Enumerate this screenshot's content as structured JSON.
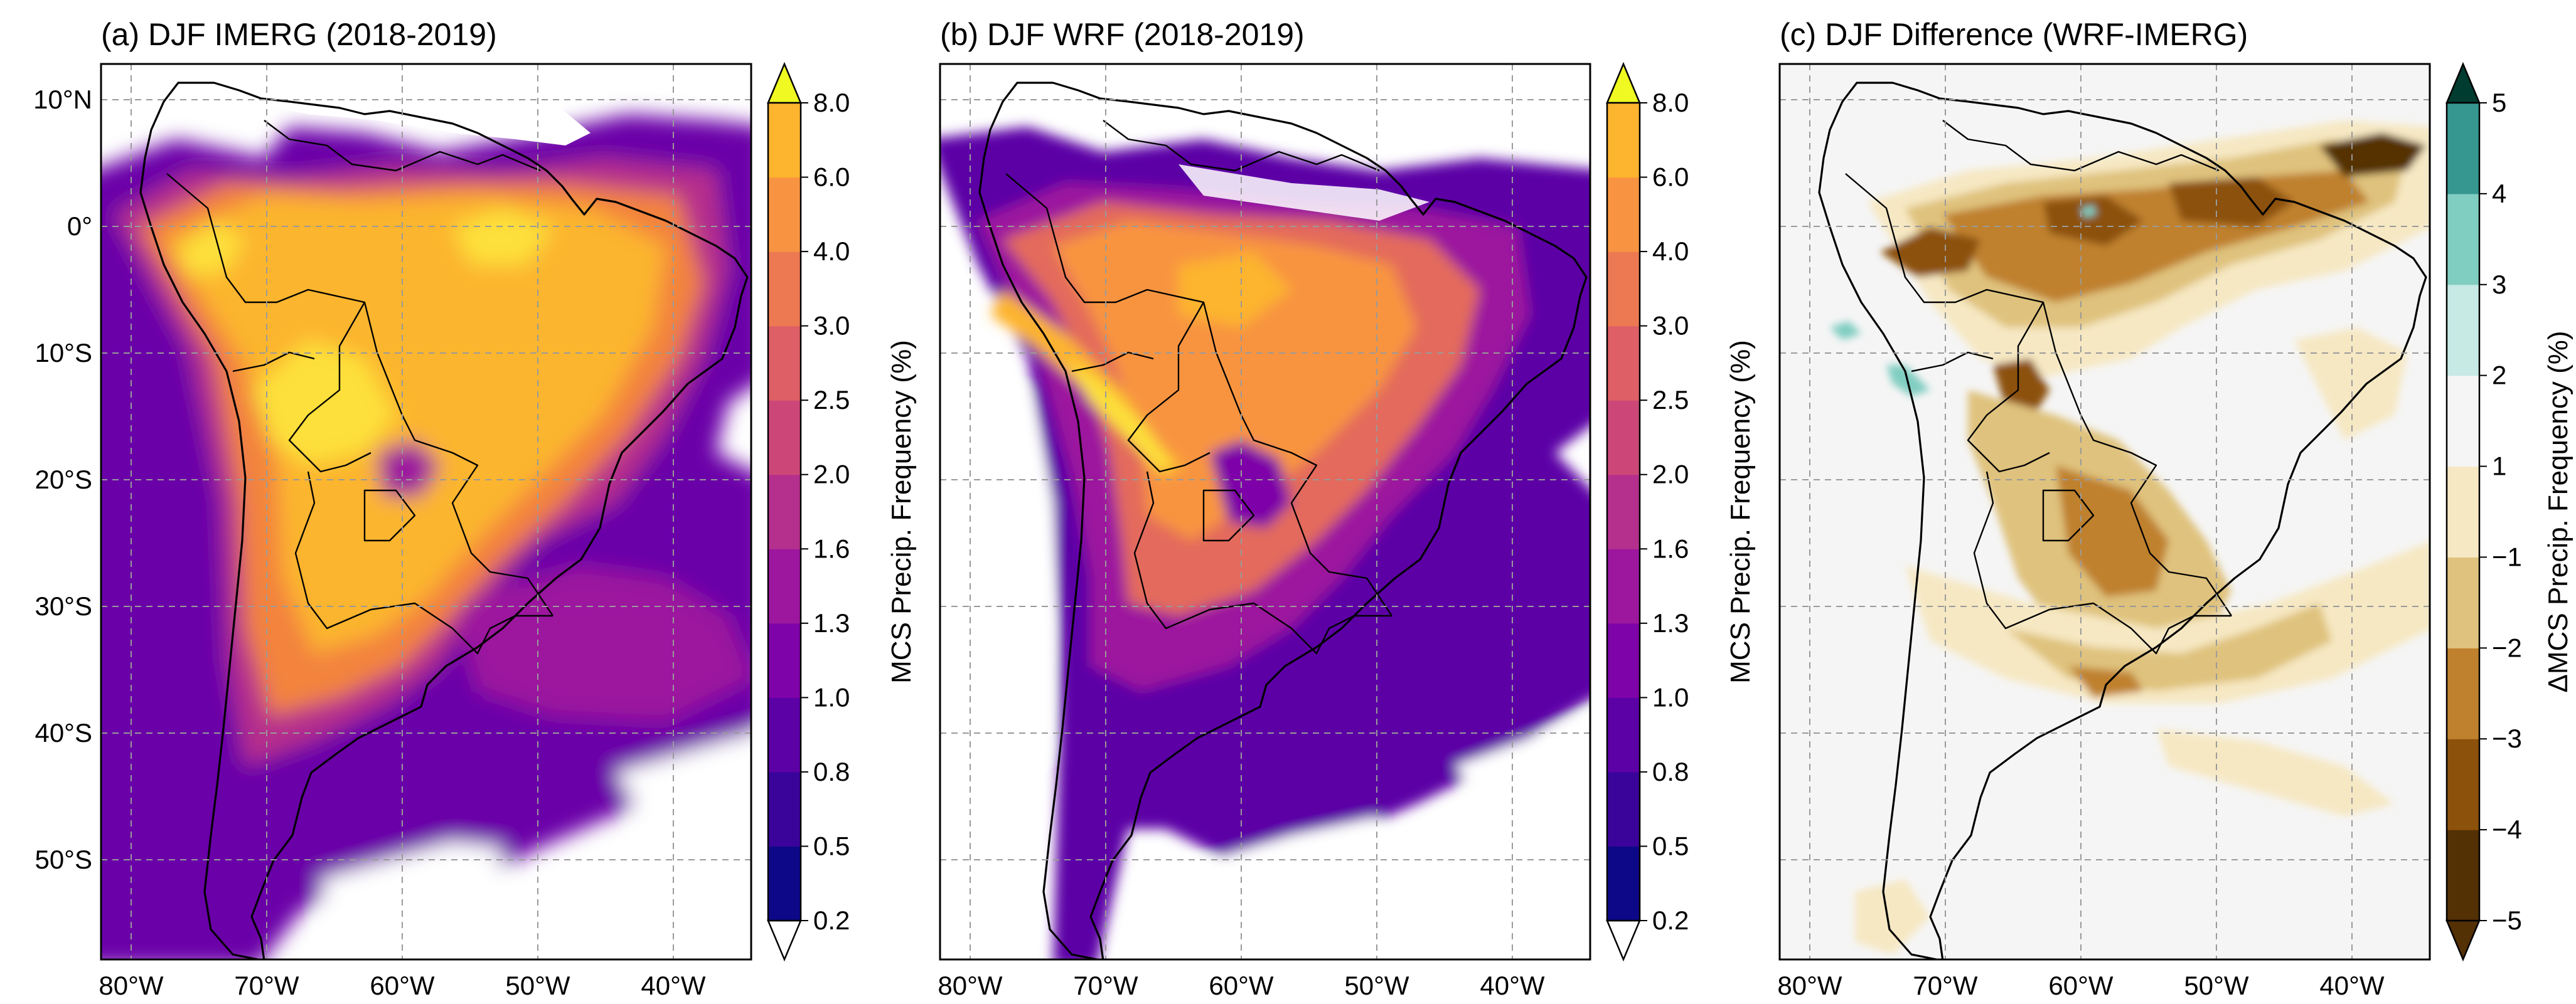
{
  "figure": {
    "panels": [
      {
        "id": "a",
        "title": "(a) DJF IMERG (2018-2019)",
        "colorbar_label": "MCS Precip. Frequency (%)",
        "colorbar_ticks": [
          "0.2",
          "0.5",
          "0.8",
          "1.0",
          "1.3",
          "1.6",
          "2.0",
          "2.5",
          "3.0",
          "4.0",
          "6.0",
          "8.0"
        ],
        "colorbar_colors": [
          "#0d0887",
          "#3a049a",
          "#5c01a6",
          "#7e03a8",
          "#9c179e",
          "#b52f8c",
          "#cc4778",
          "#de5f65",
          "#ed7953",
          "#f89441",
          "#fdb42f",
          "#fbd524",
          "#f0f921"
        ],
        "colorbar_extend": "both"
      },
      {
        "id": "b",
        "title": "(b) DJF WRF (2018-2019)",
        "colorbar_label": "MCS Precip. Frequency (%)",
        "colorbar_ticks": [
          "0.2",
          "0.5",
          "0.8",
          "1.0",
          "1.3",
          "1.6",
          "2.0",
          "2.5",
          "3.0",
          "4.0",
          "6.0",
          "8.0"
        ],
        "colorbar_colors": [
          "#0d0887",
          "#3a049a",
          "#5c01a6",
          "#7e03a8",
          "#9c179e",
          "#b52f8c",
          "#cc4778",
          "#de5f65",
          "#ed7953",
          "#f89441",
          "#fdb42f",
          "#fbd524",
          "#f0f921"
        ],
        "colorbar_extend": "both"
      },
      {
        "id": "c",
        "title": "(c) DJF Difference (WRF-IMERG)",
        "colorbar_label": "ΔMCS Precip. Frequency (%)",
        "colorbar_ticks": [
          "−5",
          "−4",
          "−3",
          "−2",
          "−1",
          "1",
          "2",
          "3",
          "4",
          "5"
        ],
        "colorbar_colors": [
          "#543005",
          "#8c510a",
          "#bf812d",
          "#dfc27d",
          "#f6e8c3",
          "#f5f5f5",
          "#c7eae5",
          "#80cdc1",
          "#35978f",
          "#01665e",
          "#003c30"
        ],
        "colorbar_extend": "both"
      }
    ],
    "lat_labels": [
      "10°N",
      "0°",
      "10°S",
      "20°S",
      "30°S",
      "40°S",
      "50°S"
    ],
    "lon_labels": [
      "80°W",
      "70°W",
      "60°W",
      "50°W",
      "40°W"
    ]
  },
  "chart_data": {
    "type": "heatmap",
    "region": "South America",
    "season": "DJF",
    "period": "2018-2019",
    "variable": "MCS Precip. Frequency (%)",
    "lon_range": [
      -82,
      -34
    ],
    "lat_range": [
      -56,
      13
    ],
    "panels": [
      "IMERG",
      "WRF",
      "WRF-IMERG"
    ],
    "colorbar_levels_a_b": [
      0.2,
      0.5,
      0.8,
      1.0,
      1.3,
      1.6,
      2.0,
      2.5,
      3.0,
      4.0,
      6.0,
      8.0
    ],
    "colorbar_levels_c": [
      -5,
      -4,
      -3,
      -2,
      -1,
      1,
      2,
      3,
      4,
      5
    ]
  }
}
